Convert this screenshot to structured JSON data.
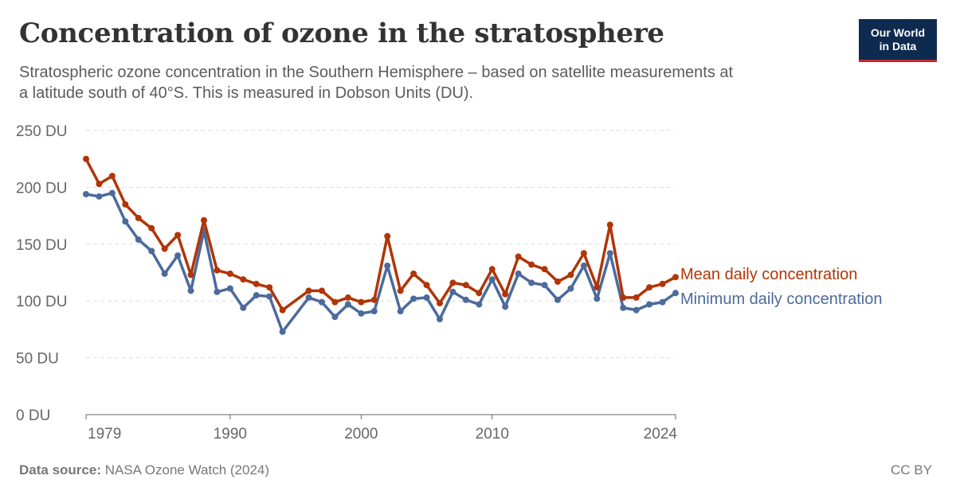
{
  "header": {
    "title": "Concentration of ozone in the stratosphere",
    "subtitle": "Stratospheric ozone concentration in the Southern Hemisphere – based on satellite measurements at a latitude south of 40°S. This is measured in Dobson Units (DU)."
  },
  "logo": {
    "line1": "Our World",
    "line2": "in Data"
  },
  "footer": {
    "source_label": "Data source:",
    "source_value": "NASA Ozone Watch (2024)",
    "license": "CC BY"
  },
  "colors": {
    "mean": "#b13507",
    "minimum": "#4c6a9c",
    "grid": "#dddddd",
    "axis": "#666666",
    "tick_label": "#666666",
    "logo_bg": "#0f2a4f",
    "logo_accent": "#c7252b"
  },
  "chart_data": {
    "type": "line",
    "title": "Concentration of ozone in the stratosphere",
    "xlim": [
      1979,
      2024
    ],
    "ylim": [
      0,
      250
    ],
    "x_ticks": [
      {
        "value": 1979,
        "label": "1979"
      },
      {
        "value": 1990,
        "label": "1990"
      },
      {
        "value": 2000,
        "label": "2000"
      },
      {
        "value": 2010,
        "label": "2010"
      },
      {
        "value": 2024,
        "label": "2024"
      }
    ],
    "y_ticks": [
      {
        "value": 0,
        "label": "0 DU"
      },
      {
        "value": 50,
        "label": "50 DU"
      },
      {
        "value": 100,
        "label": "100 DU"
      },
      {
        "value": 150,
        "label": "150 DU"
      },
      {
        "value": 200,
        "label": "200 DU"
      },
      {
        "value": 250,
        "label": "250 DU"
      }
    ],
    "grid": true,
    "legend": "inline-right",
    "series": [
      {
        "name": "Mean daily concentration",
        "color": "#b13507",
        "points": [
          [
            1979,
            225
          ],
          [
            1980,
            203
          ],
          [
            1981,
            210
          ],
          [
            1982,
            185
          ],
          [
            1983,
            173
          ],
          [
            1984,
            164
          ],
          [
            1985,
            146
          ],
          [
            1986,
            158
          ],
          [
            1987,
            123
          ],
          [
            1988,
            171
          ],
          [
            1989,
            127
          ],
          [
            1990,
            124
          ],
          [
            1991,
            119
          ],
          [
            1992,
            115
          ],
          [
            1993,
            112
          ],
          [
            1994,
            92
          ],
          [
            1996,
            109
          ],
          [
            1997,
            109
          ],
          [
            1998,
            99
          ],
          [
            1999,
            103
          ],
          [
            2000,
            99
          ],
          [
            2001,
            101
          ],
          [
            2002,
            157
          ],
          [
            2003,
            109
          ],
          [
            2004,
            124
          ],
          [
            2005,
            114
          ],
          [
            2006,
            98
          ],
          [
            2007,
            116
          ],
          [
            2008,
            114
          ],
          [
            2009,
            107
          ],
          [
            2010,
            128
          ],
          [
            2011,
            106
          ],
          [
            2012,
            139
          ],
          [
            2013,
            132
          ],
          [
            2014,
            128
          ],
          [
            2015,
            117
          ],
          [
            2016,
            123
          ],
          [
            2017,
            142
          ],
          [
            2018,
            112
          ],
          [
            2019,
            167
          ],
          [
            2020,
            103
          ],
          [
            2021,
            103
          ],
          [
            2022,
            112
          ],
          [
            2023,
            115
          ],
          [
            2024,
            121
          ]
        ]
      },
      {
        "name": "Minimum daily concentration",
        "color": "#4c6a9c",
        "points": [
          [
            1979,
            194
          ],
          [
            1980,
            192
          ],
          [
            1981,
            195
          ],
          [
            1982,
            170
          ],
          [
            1983,
            154
          ],
          [
            1984,
            144
          ],
          [
            1985,
            124
          ],
          [
            1986,
            140
          ],
          [
            1987,
            109
          ],
          [
            1988,
            162
          ],
          [
            1989,
            108
          ],
          [
            1990,
            111
          ],
          [
            1991,
            94
          ],
          [
            1992,
            105
          ],
          [
            1993,
            104
          ],
          [
            1994,
            73
          ],
          [
            1996,
            103
          ],
          [
            1997,
            99
          ],
          [
            1998,
            86
          ],
          [
            1999,
            97
          ],
          [
            2000,
            89
          ],
          [
            2001,
            91
          ],
          [
            2002,
            131
          ],
          [
            2003,
            91
          ],
          [
            2004,
            102
          ],
          [
            2005,
            103
          ],
          [
            2006,
            84
          ],
          [
            2007,
            108
          ],
          [
            2008,
            101
          ],
          [
            2009,
            97
          ],
          [
            2010,
            119
          ],
          [
            2011,
            95
          ],
          [
            2012,
            124
          ],
          [
            2013,
            116
          ],
          [
            2014,
            114
          ],
          [
            2015,
            101
          ],
          [
            2016,
            111
          ],
          [
            2017,
            131
          ],
          [
            2018,
            102
          ],
          [
            2019,
            142
          ],
          [
            2020,
            94
          ],
          [
            2021,
            92
          ],
          [
            2022,
            97
          ],
          [
            2023,
            99
          ],
          [
            2024,
            107
          ]
        ]
      }
    ]
  }
}
